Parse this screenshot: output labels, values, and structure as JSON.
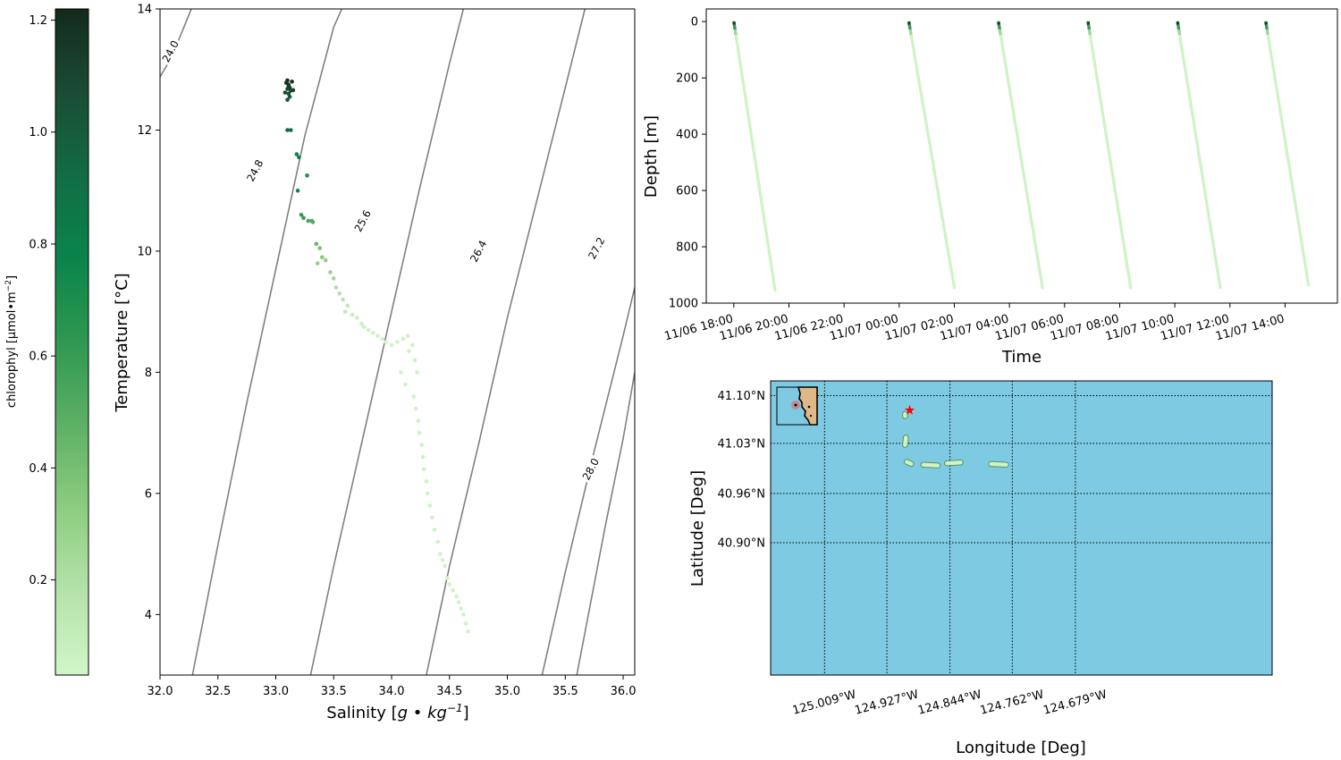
{
  "colorbar": {
    "label": "chlorophyl [µmol•m",
    "label_sup": "−2",
    "label_end": "]",
    "range": [
      0.03,
      1.22
    ],
    "ticks": [
      "0.2",
      "0.4",
      "0.6",
      "0.8",
      "1.0",
      "1.2"
    ],
    "tick_values": [
      0.2,
      0.4,
      0.6,
      0.8,
      1.0,
      1.2
    ],
    "colormap": [
      "#d2f5c8",
      "#b4e3aa",
      "#8dcd80",
      "#5db065",
      "#2f9850",
      "#0a844b",
      "#126c45",
      "#1a4c34",
      "#142a1c"
    ]
  },
  "chart_data": [
    {
      "type": "scatter",
      "title": "",
      "xlabel": "Salinity [",
      "xlabel_math": "g • kg",
      "xlabel_sup": "−1",
      "xlabel_end": "]",
      "ylabel": "Temperature [°C]",
      "xlim": [
        32.0,
        36.1
      ],
      "ylim": [
        3.0,
        14.0
      ],
      "xticks": [
        "32.0",
        "32.5",
        "33.0",
        "33.5",
        "34.0",
        "34.5",
        "35.0",
        "35.5",
        "36.0"
      ],
      "xtick_values": [
        32.0,
        32.5,
        33.0,
        33.5,
        34.0,
        34.5,
        35.0,
        35.5,
        36.0
      ],
      "yticks": [
        "4",
        "6",
        "8",
        "10",
        "12",
        "14"
      ],
      "ytick_values": [
        4,
        6,
        8,
        10,
        12,
        14
      ],
      "contour_color": "#808080",
      "density_contours": [
        {
          "label": "24.0",
          "points": [
            [
              32.0,
              12.88
            ],
            [
              32.1,
              13.2
            ],
            [
              32.27,
              14.0
            ]
          ],
          "label_at": [
            32.09,
            13.3
          ]
        },
        {
          "label": "24.8",
          "points": [
            [
              32.28,
              3.0
            ],
            [
              32.5,
              5.15
            ],
            [
              32.75,
              7.5
            ],
            [
              33.0,
              9.7
            ],
            [
              33.25,
              11.9
            ],
            [
              33.5,
              13.7
            ],
            [
              33.57,
              14.0
            ]
          ],
          "label_at": [
            32.82,
            11.33
          ]
        },
        {
          "label": "25.6",
          "points": [
            [
              33.3,
              3.0
            ],
            [
              33.5,
              4.8
            ],
            [
              33.75,
              6.9
            ],
            [
              34.0,
              9.0
            ],
            [
              34.25,
              11.1
            ],
            [
              34.5,
              13.1
            ],
            [
              34.62,
              14.0
            ]
          ],
          "label_at": [
            33.75,
            10.5
          ]
        },
        {
          "label": "26.4",
          "points": [
            [
              34.3,
              3.0
            ],
            [
              34.5,
              4.8
            ],
            [
              34.75,
              6.8
            ],
            [
              35.0,
              8.9
            ],
            [
              35.25,
              10.8
            ],
            [
              35.5,
              12.7
            ],
            [
              35.67,
              14.0
            ]
          ],
          "label_at": [
            34.75,
            10.0
          ]
        },
        {
          "label": "27.2",
          "points": [
            [
              35.3,
              3.0
            ],
            [
              35.5,
              4.7
            ],
            [
              35.75,
              6.7
            ],
            [
              36.0,
              8.6
            ],
            [
              36.1,
              9.4
            ]
          ],
          "label_at": [
            35.77,
            10.05
          ]
        },
        {
          "label": "28.0",
          "points": [
            [
              36.1,
              8.0
            ]
          ],
          "label_at": [
            35.72,
            6.4
          ]
        }
      ],
      "series": [
        {
          "x": [
            33.1,
            33.09,
            33.11,
            33.12,
            33.1,
            33.13,
            33.11,
            33.12,
            33.1,
            33.14,
            33.11,
            33.08,
            33.15,
            33.13,
            33.1,
            33.2,
            33.18,
            33.19,
            33.27,
            33.22,
            33.24,
            33.28,
            33.32,
            33.35,
            33.38,
            33.31,
            33.4,
            33.43,
            33.36,
            33.47,
            33.5,
            33.52,
            33.55,
            33.58,
            33.62,
            33.6,
            33.66,
            33.7,
            33.74,
            33.76,
            33.8,
            33.84,
            33.88,
            33.92,
            33.95,
            34.0,
            34.05,
            34.1,
            34.14,
            34.18,
            34.2,
            34.22,
            34.15,
            34.08,
            34.12,
            34.19,
            34.21,
            34.23,
            34.24,
            34.26,
            34.27,
            34.28,
            34.3,
            34.31,
            34.33,
            34.35,
            34.37,
            34.4,
            34.42,
            34.44,
            34.46,
            34.48,
            34.5,
            34.53,
            34.56,
            34.58,
            34.6,
            34.62,
            34.64,
            34.66
          ],
          "y": [
            12.82,
            12.78,
            12.75,
            12.7,
            12.68,
            12.65,
            12.6,
            12.55,
            12.5,
            12.8,
            12.72,
            12.62,
            12.66,
            12.0,
            12.0,
            11.55,
            11.6,
            11.0,
            11.25,
            10.6,
            10.55,
            10.5,
            10.48,
            10.12,
            10.05,
            10.5,
            9.9,
            9.85,
            9.8,
            9.65,
            9.55,
            9.4,
            9.3,
            9.2,
            9.1,
            9.0,
            8.95,
            8.9,
            8.8,
            8.75,
            8.7,
            8.65,
            8.6,
            8.55,
            8.5,
            8.45,
            8.5,
            8.55,
            8.6,
            8.45,
            8.2,
            8.0,
            8.35,
            8.0,
            7.8,
            7.6,
            7.4,
            7.2,
            7.0,
            6.8,
            6.6,
            6.4,
            6.2,
            6.0,
            5.8,
            5.6,
            5.4,
            5.2,
            5.0,
            4.9,
            4.8,
            4.6,
            4.5,
            4.4,
            4.3,
            4.2,
            4.1,
            4.0,
            3.85,
            3.72
          ],
          "c": [
            1.2,
            1.18,
            1.15,
            1.12,
            1.1,
            1.08,
            1.05,
            1.02,
            1.0,
            1.19,
            1.14,
            1.06,
            1.1,
            0.9,
            0.95,
            0.8,
            0.78,
            0.75,
            0.7,
            0.62,
            0.6,
            0.55,
            0.5,
            0.45,
            0.4,
            0.52,
            0.35,
            0.32,
            0.3,
            0.28,
            0.25,
            0.2,
            0.18,
            0.16,
            0.14,
            0.12,
            0.1,
            0.09,
            0.08,
            0.07,
            0.06,
            0.06,
            0.05,
            0.05,
            0.05,
            0.05,
            0.05,
            0.05,
            0.05,
            0.05,
            0.05,
            0.05,
            0.05,
            0.05,
            0.05,
            0.05,
            0.05,
            0.05,
            0.05,
            0.05,
            0.05,
            0.05,
            0.05,
            0.05,
            0.05,
            0.05,
            0.05,
            0.05,
            0.05,
            0.05,
            0.05,
            0.05,
            0.05,
            0.05,
            0.05,
            0.05,
            0.05,
            0.05,
            0.05,
            0.05
          ]
        }
      ]
    },
    {
      "type": "line",
      "title": "",
      "xlabel": "Time",
      "ylabel": "Depth [m]",
      "y_inverted": true,
      "ylim": [
        1000,
        -45
      ],
      "yticks": [
        "0",
        "200",
        "400",
        "600",
        "800",
        "1000"
      ],
      "ytick_values": [
        0,
        200,
        400,
        600,
        800,
        1000
      ],
      "xlim_hours_from_1106_0000": [
        17.0,
        39.9
      ],
      "xticks": [
        "11/06 18:00",
        "11/06 20:00",
        "11/06 22:00",
        "11/07 00:00",
        "11/07 02:00",
        "11/07 04:00",
        "11/07 06:00",
        "11/07 08:00",
        "11/07 10:00",
        "11/07 12:00",
        "11/07 14:00"
      ],
      "xtick_values": [
        18,
        20,
        22,
        24,
        26,
        28,
        30,
        32,
        34,
        36,
        38
      ],
      "profiles": [
        {
          "t_start": 18.0,
          "t_end": 19.5,
          "depth_start": 0,
          "depth_end": 955
        },
        {
          "t_start": 24.35,
          "t_end": 26.0,
          "depth_start": 0,
          "depth_end": 945
        },
        {
          "t_start": 27.6,
          "t_end": 29.2,
          "depth_start": 0,
          "depth_end": 945
        },
        {
          "t_start": 30.85,
          "t_end": 32.4,
          "depth_start": 0,
          "depth_end": 945
        },
        {
          "t_start": 34.1,
          "t_end": 35.65,
          "depth_start": 0,
          "depth_end": 945
        },
        {
          "t_start": 37.3,
          "t_end": 38.85,
          "depth_start": 0,
          "depth_end": 935
        }
      ]
    },
    {
      "type": "scatter",
      "title": "",
      "xlabel": "Longitude [Deg]",
      "ylabel": "Latitude [Deg]",
      "background": "#7ecae2",
      "xlim_lon": [
        -125.08,
        -124.42
      ],
      "ylim_lat": [
        40.72,
        41.12
      ],
      "xticks": [
        "125.009°W",
        "124.927°W",
        "124.844°W",
        "124.762°W",
        "124.679°W"
      ],
      "xtick_values": [
        -125.009,
        -124.927,
        -124.844,
        -124.762,
        -124.679
      ],
      "yticks": [
        "41.10°N",
        "41.03°N",
        "40.96°N",
        "40.90°N"
      ],
      "ytick_values": [
        41.1,
        41.035,
        40.967,
        40.9
      ],
      "track_segments": [
        {
          "lon": [
            -124.903,
            -124.903
          ],
          "lat": [
            41.072,
            41.075
          ]
        },
        {
          "lon": [
            -124.903,
            -124.902
          ],
          "lat": [
            41.033,
            41.043
          ]
        },
        {
          "lon": [
            -124.901,
            -124.895
          ],
          "lat": [
            41.01,
            41.007
          ]
        },
        {
          "lon": [
            -124.879,
            -124.86
          ],
          "lat": [
            41.006,
            41.005
          ]
        },
        {
          "lon": [
            -124.848,
            -124.83
          ],
          "lat": [
            41.008,
            41.009
          ]
        },
        {
          "lon": [
            -124.79,
            -124.77
          ],
          "lat": [
            41.007,
            41.006
          ]
        }
      ],
      "star": {
        "lon": [
          -124.897
        ],
        "lat": [
          41.08
        ],
        "color": "#ff0000"
      },
      "inset": {
        "land_color": "#deb887",
        "marker_color": "#e07070"
      }
    }
  ]
}
